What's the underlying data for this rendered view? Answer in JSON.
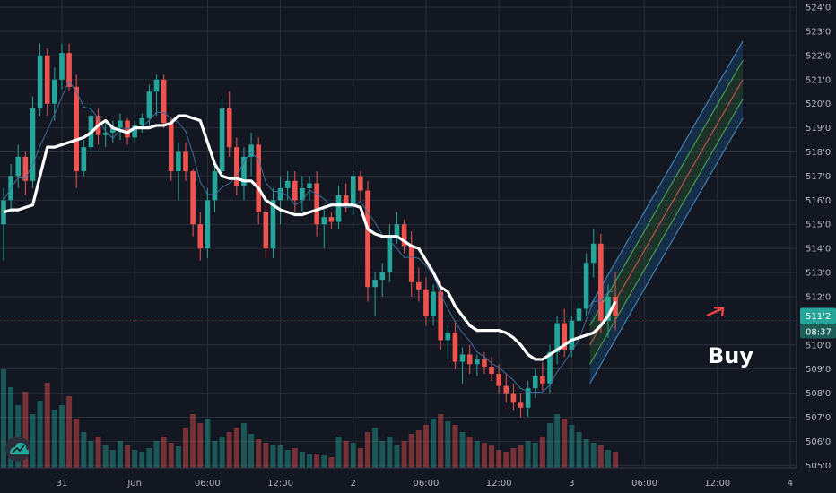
{
  "chart_data": {
    "type": "candlestick",
    "y_axis": {
      "range": [
        5049,
        5243
      ],
      "tick_values": [
        5050,
        5060,
        5070,
        5080,
        5090,
        5100,
        5110,
        5120,
        5130,
        5140,
        5150,
        5160,
        5170,
        5180,
        5190,
        5200,
        5210,
        5220,
        5230,
        5240
      ],
      "tick_labels": [
        "505'0",
        "506'0",
        "507'0",
        "508'0",
        "509'0",
        "510'0",
        "511'0",
        "512'0",
        "513'0",
        "514'0",
        "515'0",
        "516'0",
        "517'0",
        "518'0",
        "519'0",
        "520'0",
        "521'0",
        "522'0",
        "523'0",
        "524'0"
      ]
    },
    "x_axis": {
      "ticks": [
        {
          "label": "31",
          "bar": 8
        },
        {
          "label": "Jun",
          "bar": 18
        },
        {
          "label": "06:00",
          "bar": 28
        },
        {
          "label": "12:00",
          "bar": 38
        },
        {
          "label": "2",
          "bar": 48
        },
        {
          "label": "06:00",
          "bar": 58
        },
        {
          "label": "12:00",
          "bar": 68
        },
        {
          "label": "3",
          "bar": 78
        },
        {
          "label": "06:00",
          "bar": 88
        },
        {
          "label": "12:00",
          "bar": 98
        },
        {
          "label": "4",
          "bar": 108
        }
      ]
    },
    "current_price": {
      "value": 5112,
      "label": "511'2",
      "countdown": "08:37"
    },
    "annotation": {
      "text": "Buy"
    },
    "colors": {
      "background": "#131722",
      "up": "#26a69a",
      "down": "#ef5350",
      "grid": "#2a2e39",
      "price_line": "#26a69a",
      "white_line": "#ffffff",
      "thin_line": "#3f6e9a",
      "channel_outer": "#4a90c8",
      "channel_mid": "#4caf50",
      "channel_center": "#e05656"
    },
    "candles": [
      [
        5150,
        5165,
        5135,
        5160
      ],
      [
        5160,
        5175,
        5155,
        5170
      ],
      [
        5170,
        5183,
        5165,
        5178
      ],
      [
        5178,
        5180,
        5162,
        5168
      ],
      [
        5168,
        5203,
        5165,
        5198
      ],
      [
        5198,
        5225,
        5195,
        5220
      ],
      [
        5220,
        5223,
        5195,
        5200
      ],
      [
        5200,
        5215,
        5193,
        5210
      ],
      [
        5210,
        5225,
        5206,
        5221
      ],
      [
        5221,
        5225,
        5205,
        5207
      ],
      [
        5207,
        5212,
        5165,
        5172
      ],
      [
        5172,
        5185,
        5170,
        5182
      ],
      [
        5182,
        5200,
        5180,
        5195
      ],
      [
        5195,
        5198,
        5183,
        5187
      ],
      [
        5187,
        5192,
        5182,
        5188
      ],
      [
        5188,
        5193,
        5184,
        5190
      ],
      [
        5190,
        5196,
        5185,
        5193
      ],
      [
        5193,
        5194,
        5183,
        5186
      ],
      [
        5186,
        5193,
        5184,
        5191
      ],
      [
        5191,
        5196,
        5188,
        5194
      ],
      [
        5194,
        5208,
        5190,
        5205
      ],
      [
        5205,
        5212,
        5195,
        5210
      ],
      [
        5210,
        5212,
        5190,
        5192
      ],
      [
        5192,
        5194,
        5168,
        5172
      ],
      [
        5172,
        5184,
        5160,
        5180
      ],
      [
        5180,
        5184,
        5168,
        5172
      ],
      [
        5172,
        5173,
        5145,
        5150
      ],
      [
        5150,
        5155,
        5135,
        5140
      ],
      [
        5140,
        5165,
        5136,
        5160
      ],
      [
        5160,
        5175,
        5155,
        5172
      ],
      [
        5172,
        5202,
        5168,
        5198
      ],
      [
        5198,
        5205,
        5178,
        5182
      ],
      [
        5182,
        5186,
        5162,
        5166
      ],
      [
        5166,
        5182,
        5160,
        5178
      ],
      [
        5178,
        5188,
        5170,
        5183
      ],
      [
        5183,
        5186,
        5150,
        5155
      ],
      [
        5155,
        5158,
        5136,
        5140
      ],
      [
        5140,
        5165,
        5136,
        5160
      ],
      [
        5160,
        5170,
        5150,
        5165
      ],
      [
        5165,
        5172,
        5160,
        5168
      ],
      [
        5168,
        5172,
        5155,
        5160
      ],
      [
        5160,
        5170,
        5155,
        5165
      ],
      [
        5165,
        5170,
        5160,
        5167
      ],
      [
        5167,
        5172,
        5145,
        5150
      ],
      [
        5150,
        5158,
        5140,
        5153
      ],
      [
        5153,
        5155,
        5148,
        5151
      ],
      [
        5151,
        5166,
        5148,
        5162
      ],
      [
        5162,
        5167,
        5155,
        5158
      ],
      [
        5158,
        5172,
        5154,
        5170
      ],
      [
        5170,
        5172,
        5160,
        5164
      ],
      [
        5164,
        5168,
        5118,
        5124
      ],
      [
        5124,
        5130,
        5112,
        5127
      ],
      [
        5127,
        5134,
        5120,
        5130
      ],
      [
        5130,
        5150,
        5126,
        5145
      ],
      [
        5145,
        5155,
        5142,
        5150
      ],
      [
        5150,
        5152,
        5138,
        5141
      ],
      [
        5141,
        5147,
        5120,
        5126
      ],
      [
        5126,
        5132,
        5118,
        5123
      ],
      [
        5123,
        5128,
        5108,
        5112
      ],
      [
        5112,
        5125,
        5108,
        5122
      ],
      [
        5122,
        5126,
        5098,
        5102
      ],
      [
        5102,
        5108,
        5094,
        5105
      ],
      [
        5105,
        5110,
        5090,
        5093
      ],
      [
        5093,
        5099,
        5084,
        5096
      ],
      [
        5096,
        5100,
        5088,
        5092
      ],
      [
        5092,
        5096,
        5087,
        5094
      ],
      [
        5094,
        5097,
        5088,
        5091
      ],
      [
        5091,
        5095,
        5085,
        5088
      ],
      [
        5088,
        5092,
        5080,
        5083
      ],
      [
        5083,
        5088,
        5076,
        5080
      ],
      [
        5080,
        5084,
        5073,
        5076
      ],
      [
        5076,
        5080,
        5070,
        5074
      ],
      [
        5074,
        5085,
        5070,
        5082
      ],
      [
        5082,
        5090,
        5078,
        5087
      ],
      [
        5087,
        5093,
        5081,
        5084
      ],
      [
        5084,
        5100,
        5080,
        5097
      ],
      [
        5097,
        5112,
        5092,
        5109
      ],
      [
        5109,
        5115,
        5095,
        5098
      ],
      [
        5098,
        5112,
        5095,
        5110
      ],
      [
        5110,
        5118,
        5106,
        5115
      ],
      [
        5115,
        5138,
        5112,
        5134
      ],
      [
        5134,
        5148,
        5128,
        5142
      ],
      [
        5142,
        5146,
        5105,
        5110
      ],
      [
        5110,
        5125,
        5103,
        5120
      ],
      [
        5120,
        5130,
        5106,
        5112
      ]
    ],
    "volumes": [
      110,
      90,
      70,
      85,
      60,
      75,
      95,
      65,
      70,
      80,
      55,
      40,
      30,
      35,
      25,
      20,
      30,
      25,
      20,
      18,
      22,
      30,
      35,
      28,
      24,
      45,
      60,
      50,
      55,
      30,
      35,
      40,
      45,
      50,
      38,
      32,
      28,
      26,
      25,
      20,
      22,
      18,
      15,
      16,
      14,
      12,
      35,
      30,
      28,
      22,
      40,
      45,
      30,
      35,
      25,
      30,
      38,
      42,
      48,
      55,
      60,
      52,
      48,
      40,
      35,
      30,
      28,
      25,
      20,
      18,
      22,
      25,
      30,
      28,
      35,
      50,
      60,
      55,
      48,
      40,
      32,
      28,
      25,
      20,
      18
    ],
    "white_ma": [
      5155,
      5156,
      5156,
      5157,
      5158,
      5170,
      5182,
      5182,
      5183,
      5184,
      5185,
      5186,
      5188,
      5191,
      5193,
      5190,
      5189,
      5188,
      5190,
      5190,
      5190,
      5191,
      5191,
      5192,
      5195,
      5195,
      5194,
      5193,
      5184,
      5175,
      5170,
      5169,
      5169,
      5168,
      5168,
      5165,
      5160,
      5158,
      5156,
      5155,
      5154,
      5154,
      5155,
      5156,
      5157,
      5158,
      5158,
      5158,
      5158,
      5157,
      5148,
      5146,
      5145,
      5145,
      5145,
      5143,
      5141,
      5140,
      5135,
      5130,
      5124,
      5122,
      5116,
      5112,
      5108,
      5106,
      5106,
      5106,
      5106,
      5105,
      5103,
      5100,
      5096,
      5094,
      5094,
      5096,
      5098,
      5100,
      5102,
      5103,
      5104,
      5105,
      5108,
      5112,
      5118
    ]
  }
}
